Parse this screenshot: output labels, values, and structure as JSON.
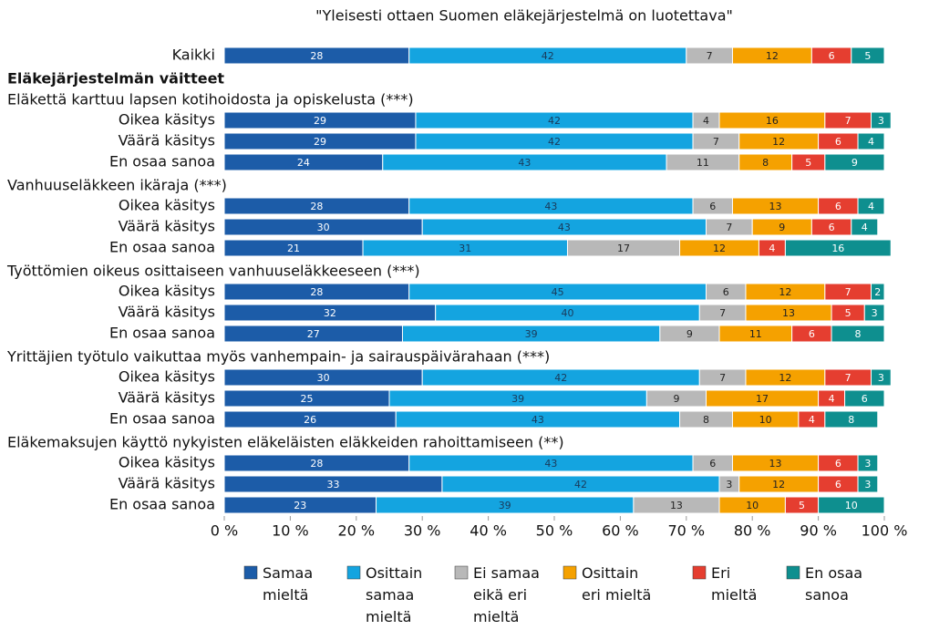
{
  "chart_data": {
    "type": "stacked_barh",
    "title": "\"Yleisesti ottaen Suomen eläkejärjestelmä on luotettava\"",
    "section_title": "Eläkejärjestelmän väitteet",
    "groups": [
      "Eläkettä karttuu lapsen kotihoidosta ja opiskelusta (***)",
      "Vanhuuseläkkeen ikäraja (***)",
      "Työttömien oikeus osittaiseen vanhuuseläkkeeseen (***)",
      "Yrittäjien työtulo vaikuttaa myös vanhempain- ja sairauspäivärahaan  (***)",
      "Eläkemaksujen käyttö nykyisten eläkeläisten eläkkeiden rahoittamiseen (**)"
    ],
    "categories": [
      "Kaikki",
      "Oikea käsitys",
      "Väärä käsitys",
      "En osaa sanoa",
      "Oikea käsitys",
      "Väärä käsitys",
      "En osaa sanoa",
      "Oikea käsitys",
      "Väärä käsitys",
      "En osaa sanoa",
      "Oikea käsitys",
      "Väärä käsitys",
      "En osaa sanoa",
      "Oikea käsitys",
      "Väärä käsitys",
      "En osaa sanoa"
    ],
    "series": [
      {
        "name": "Samaa\nmieltä",
        "color": "#1c5ca8",
        "label_color": "#ffffff",
        "values": [
          28,
          29,
          29,
          24,
          28,
          30,
          21,
          28,
          32,
          27,
          30,
          25,
          26,
          28,
          33,
          23
        ]
      },
      {
        "name": "Osittain\nsamaa\nmieltä",
        "color": "#14a4e0",
        "label_color": "#1a3a5a",
        "values": [
          42,
          42,
          42,
          43,
          43,
          43,
          31,
          45,
          40,
          39,
          42,
          39,
          43,
          43,
          42,
          39
        ]
      },
      {
        "name": "Ei samaa\neikä eri\nmieltä",
        "color": "#b8b8b8",
        "label_color": "#222222",
        "values": [
          7,
          4,
          7,
          11,
          6,
          7,
          17,
          6,
          7,
          9,
          7,
          9,
          8,
          6,
          3,
          13
        ]
      },
      {
        "name": "Osittain\neri mieltä",
        "color": "#f5a100",
        "label_color": "#222222",
        "values": [
          12,
          16,
          12,
          8,
          13,
          9,
          12,
          12,
          13,
          11,
          12,
          17,
          10,
          13,
          12,
          10
        ]
      },
      {
        "name": "Eri\nmieltä",
        "color": "#e53e30",
        "label_color": "#ffffff",
        "values": [
          6,
          7,
          6,
          5,
          6,
          6,
          4,
          7,
          5,
          6,
          7,
          4,
          4,
          6,
          6,
          5
        ]
      },
      {
        "name": "En osaa\nsanoa",
        "color": "#0e8f8f",
        "label_color": "#ffffff",
        "values": [
          5,
          3,
          4,
          9,
          4,
          4,
          16,
          2,
          3,
          8,
          3,
          6,
          8,
          3,
          3,
          10
        ]
      }
    ],
    "xlim": [
      0,
      100
    ],
    "xticks": [
      {
        "value": 0,
        "label": "0 %"
      },
      {
        "value": 10,
        "label": "10 %"
      },
      {
        "value": 20,
        "label": "20 %"
      },
      {
        "value": 30,
        "label": "30 %"
      },
      {
        "value": 40,
        "label": "40 %"
      },
      {
        "value": 50,
        "label": "50 %"
      },
      {
        "value": 60,
        "label": "60 %"
      },
      {
        "value": 70,
        "label": "70 %"
      },
      {
        "value": 80,
        "label": "80 %"
      },
      {
        "value": 90,
        "label": "90 %"
      },
      {
        "value": 100,
        "label": "100 %"
      }
    ]
  }
}
